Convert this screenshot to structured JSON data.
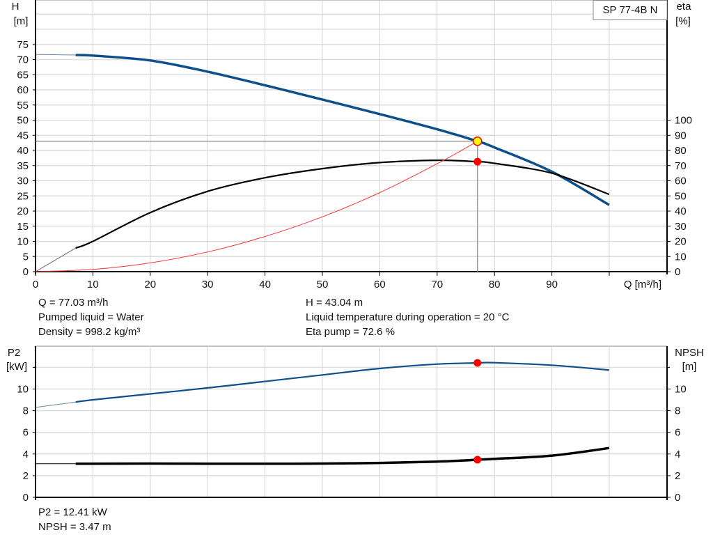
{
  "chart_data": [
    {
      "type": "line",
      "title": "SP 77-4B N",
      "xlabel": "Q [m³/h]",
      "xlim": [
        0,
        100
      ],
      "x_ticks": [
        0,
        10,
        20,
        30,
        40,
        50,
        60,
        70,
        80,
        90
      ],
      "y_left": {
        "label_line1": "H",
        "label_line2": "[m]",
        "lim": [
          0,
          75
        ],
        "ticks": [
          0,
          5,
          10,
          15,
          20,
          25,
          30,
          35,
          40,
          45,
          50,
          55,
          60,
          65,
          70,
          75
        ]
      },
      "y_right": {
        "label_line1": "eta",
        "label_line2": "[%]",
        "lim": [
          0,
          100
        ],
        "ticks": [
          0,
          10,
          20,
          30,
          40,
          50,
          60,
          70,
          80,
          90,
          100
        ]
      },
      "grid": true,
      "series": [
        {
          "axis": "left",
          "color": "#0d4f8b",
          "x": [
            0,
            7,
            10,
            20,
            30,
            40,
            50,
            60,
            70,
            77.03,
            80,
            90,
            100
          ],
          "y": [
            71.7,
            71.5,
            71.3,
            69.7,
            66,
            61.5,
            56.8,
            52,
            47,
            43.04,
            41,
            33,
            22
          ]
        },
        {
          "axis": "right",
          "color": "#000000",
          "x": [
            0,
            7,
            10,
            20,
            30,
            40,
            50,
            60,
            70,
            77.03,
            80,
            90,
            100
          ],
          "y": [
            0,
            15.6,
            20,
            39,
            53,
            62,
            68,
            72,
            73.5,
            72.6,
            71.5,
            65,
            51
          ]
        },
        {
          "axis": "left",
          "color": "#ff3333",
          "x": [
            0,
            10,
            20,
            30,
            40,
            50,
            60,
            70,
            77.03
          ],
          "y": [
            0,
            0.73,
            2.9,
            6.5,
            11.6,
            18.1,
            26.1,
            35.6,
            43.04
          ]
        }
      ],
      "operating_point": {
        "Q": 77.03,
        "H": 43.04,
        "eta": 72.6
      }
    },
    {
      "type": "line",
      "xlim": [
        0,
        100
      ],
      "y_left": {
        "label_line1": "P2",
        "label_line2": "[kW]",
        "lim": [
          0,
          14
        ],
        "ticks": [
          0,
          2,
          4,
          6,
          8,
          10
        ]
      },
      "y_right": {
        "label_line1": "NPSH",
        "label_line2": "[m]",
        "lim": [
          0,
          14
        ],
        "ticks": [
          0,
          2,
          4,
          6,
          8,
          10
        ]
      },
      "grid": true,
      "series": [
        {
          "axis": "left",
          "color": "#0d4f8b",
          "x": [
            0,
            7,
            10,
            20,
            30,
            40,
            50,
            60,
            70,
            77.03,
            80,
            90,
            100
          ],
          "y": [
            8.3,
            8.8,
            9.0,
            9.55,
            10.1,
            10.7,
            11.3,
            11.9,
            12.3,
            12.41,
            12.43,
            12.2,
            11.75
          ]
        },
        {
          "axis": "right",
          "color": "#000000",
          "x": [
            0,
            7,
            20,
            30,
            40,
            50,
            60,
            70,
            77.03,
            80,
            90,
            100
          ],
          "y": [
            3.1,
            3.1,
            3.12,
            3.1,
            3.1,
            3.12,
            3.18,
            3.3,
            3.47,
            3.55,
            3.85,
            4.55
          ]
        }
      ],
      "operating_point": {
        "P2": 12.41,
        "NPSH": 3.47
      }
    }
  ],
  "info": {
    "q": "Q = 77.03 m³/h",
    "liquid": "Pumped liquid = Water",
    "density": "Density = 998.2 kg/m³",
    "h": "H = 43.04 m",
    "temp": "Liquid temperature during operation = 20 °C",
    "eta": "Eta pump = 72.6 %",
    "p2": "P2 = 12.41 kW",
    "npsh": "NPSH = 3.47 m"
  }
}
